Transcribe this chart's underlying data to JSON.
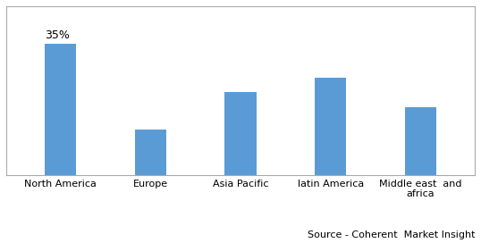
{
  "categories": [
    "North America",
    "Europe",
    "Asia Pacific",
    "latin America",
    "Middle east  and\nafrica"
  ],
  "values": [
    35,
    12,
    22,
    26,
    18
  ],
  "bar_color": "#5B9BD5",
  "annotation_text": "35%",
  "annotation_fontsize": 9,
  "source_text": "Source - Coherent  Market Insight",
  "source_fontsize": 8,
  "ylim": [
    0,
    45
  ],
  "bar_width": 0.35,
  "figsize": [
    5.38,
    2.72
  ],
  "dpi": 100,
  "tick_fontsize": 8,
  "background_color": "#ffffff",
  "spine_color": "#aaaaaa",
  "border_color": "#aaaaaa"
}
